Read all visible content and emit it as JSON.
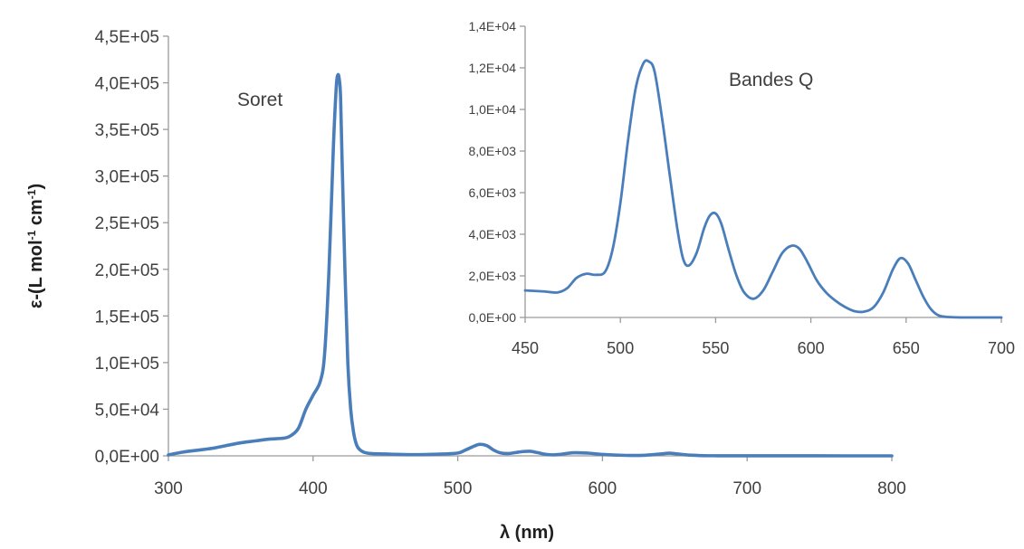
{
  "chart_data": [
    {
      "type": "line",
      "title": "",
      "xlabel": "λ (nm)",
      "ylabel": "ε-(L mol-1 cm-1)",
      "xlim": [
        300,
        800
      ],
      "ylim": [
        0,
        450000
      ],
      "x_ticks": [
        "300",
        "400",
        "500",
        "600",
        "700",
        "800"
      ],
      "y_ticks": [
        "0,0E+00",
        "5,0E+04",
        "1,0E+05",
        "1,5E+05",
        "2,0E+05",
        "2,5E+05",
        "3,0E+05",
        "3,5E+05",
        "4,0E+05",
        "4,5E+05"
      ],
      "annotations": [
        "Soret"
      ],
      "series": [
        {
          "x": [
            300,
            310,
            320,
            330,
            340,
            350,
            360,
            370,
            380,
            385,
            390,
            395,
            400,
            405,
            408,
            411,
            414,
            416,
            417,
            418,
            419,
            420,
            422,
            424,
            426,
            428,
            430,
            432,
            435,
            440,
            450,
            460,
            470,
            480,
            490,
            500,
            505,
            510,
            515,
            520,
            525,
            530,
            535,
            540,
            545,
            550,
            555,
            560,
            565,
            570,
            580,
            590,
            600,
            610,
            620,
            630,
            640,
            646,
            650,
            660,
            670,
            680,
            700,
            750,
            800
          ],
          "y": [
            1000,
            4000,
            6000,
            8000,
            11000,
            14000,
            16000,
            18000,
            19000,
            22000,
            30000,
            50000,
            65000,
            80000,
            110000,
            200000,
            330000,
            395000,
            408000,
            405000,
            385000,
            320000,
            200000,
            100000,
            50000,
            25000,
            12000,
            7000,
            4000,
            2500,
            2000,
            1500,
            1300,
            1500,
            2000,
            3000,
            6000,
            9500,
            12300,
            11000,
            6000,
            3000,
            2500,
            3500,
            4600,
            4900,
            3500,
            1800,
            1100,
            1500,
            3300,
            2900,
            1500,
            800,
            400,
            700,
            2000,
            2800,
            2400,
            800,
            200,
            100,
            50,
            20,
            0
          ]
        }
      ]
    },
    {
      "type": "line",
      "title": "",
      "xlabel": "",
      "ylabel": "",
      "xlim": [
        450,
        700
      ],
      "ylim": [
        0,
        14000
      ],
      "x_ticks": [
        "450",
        "500",
        "550",
        "600",
        "650",
        "700"
      ],
      "y_ticks": [
        "0,0E+00",
        "2,0E+03",
        "4,0E+03",
        "6,0E+03",
        "8,0E+03",
        "1,0E+04",
        "1,2E+04",
        "1,4E+04"
      ],
      "annotations": [
        "Bandes Q"
      ],
      "series": [
        {
          "x": [
            450,
            460,
            467,
            472,
            477,
            482,
            487,
            492,
            496,
            500,
            504,
            508,
            512,
            515,
            518,
            522,
            526,
            530,
            533,
            536,
            540,
            544,
            547,
            550,
            553,
            557,
            561,
            565,
            570,
            575,
            580,
            585,
            590,
            594,
            598,
            603,
            608,
            613,
            618,
            623,
            628,
            633,
            638,
            643,
            647,
            651,
            655,
            659,
            663,
            667,
            672,
            680,
            690,
            700
          ],
          "y": [
            1300,
            1250,
            1200,
            1400,
            1900,
            2100,
            2050,
            2200,
            3300,
            5500,
            8500,
            11000,
            12200,
            12300,
            11800,
            9500,
            6800,
            4200,
            2800,
            2500,
            3100,
            4300,
            4900,
            5000,
            4500,
            3200,
            2000,
            1200,
            900,
            1300,
            2200,
            3100,
            3450,
            3300,
            2700,
            1800,
            1200,
            800,
            500,
            300,
            280,
            500,
            1200,
            2300,
            2850,
            2600,
            1800,
            1000,
            400,
            100,
            20,
            0,
            0,
            0
          ]
        }
      ]
    }
  ]
}
